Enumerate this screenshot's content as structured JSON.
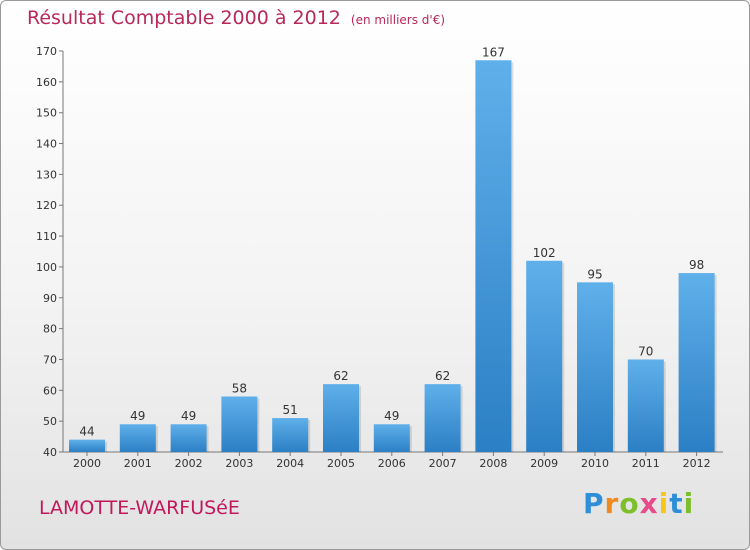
{
  "chart_data": {
    "type": "bar",
    "title": "Résultat Comptable 2000 à 2012",
    "subtitle": "(en milliers d'€)",
    "categories": [
      "2000",
      "2001",
      "2002",
      "2003",
      "2004",
      "2005",
      "2006",
      "2007",
      "2008",
      "2009",
      "2010",
      "2011",
      "2012"
    ],
    "values": [
      44,
      49,
      49,
      58,
      51,
      62,
      49,
      62,
      167,
      102,
      95,
      70,
      98
    ],
    "ylim": [
      40,
      170
    ],
    "yticks": [
      40,
      50,
      60,
      70,
      80,
      90,
      100,
      110,
      120,
      130,
      140,
      150,
      160,
      170
    ],
    "xlabel": "",
    "ylabel": "",
    "grid": false,
    "bar_color": "#3a8fd6"
  },
  "location": "LAMOTTE-WARFUSéE",
  "logo": {
    "letters": [
      "P",
      "r",
      "o",
      "x",
      "i",
      "t",
      "i"
    ],
    "colors": [
      "#2e8fd8",
      "#f08a1c",
      "#7cbf2a",
      "#e84b8a",
      "#f5c71a",
      "#2e8fd8",
      "#7cbf2a"
    ]
  }
}
